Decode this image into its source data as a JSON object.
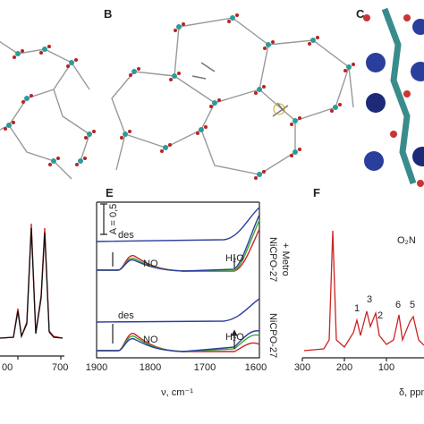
{
  "panels": {
    "b": {
      "label": "B"
    },
    "c": {
      "label": "C"
    },
    "d": {
      "x_ticks": [
        "00",
        "700"
      ]
    },
    "e": {
      "label": "E",
      "scale_bar": "A = 0,5",
      "traces": [
        "des",
        "NO",
        "H₂O",
        "des",
        "NO",
        "H₂O"
      ],
      "samples": [
        "NiCPO-27",
        "+ Metro",
        "NiCPO-27"
      ],
      "x_ticks": [
        "1900",
        "1800",
        "1700",
        "1600"
      ],
      "x_label": "ν, cm⁻¹"
    },
    "f": {
      "label": "F",
      "x_ticks": [
        "300",
        "200",
        "100"
      ],
      "x_label": "δ, ppm",
      "peaks": [
        "1",
        "3",
        "2",
        "6",
        "5"
      ],
      "molecule": "O₂N"
    }
  }
}
